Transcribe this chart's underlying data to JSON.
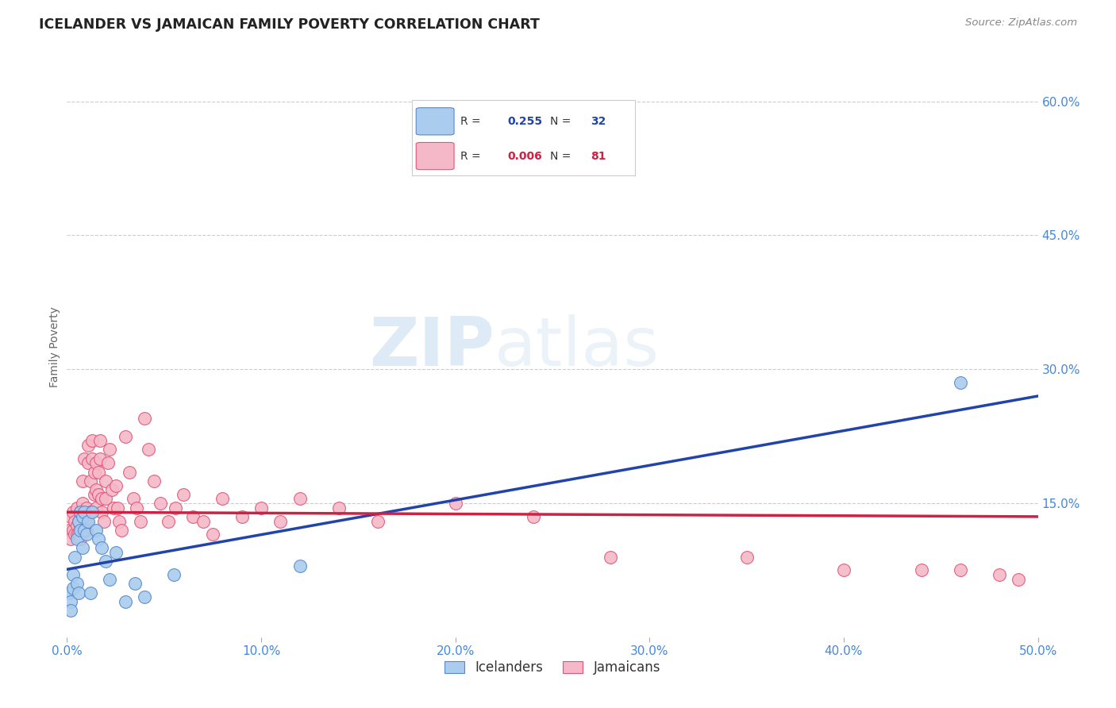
{
  "title": "ICELANDER VS JAMAICAN FAMILY POVERTY CORRELATION CHART",
  "source": "Source: ZipAtlas.com",
  "ylabel": "Family Poverty",
  "watermark_zip": "ZIP",
  "watermark_atlas": "atlas",
  "xlim": [
    0.0,
    0.5
  ],
  "ylim": [
    0.0,
    0.65
  ],
  "xticks": [
    0.0,
    0.1,
    0.2,
    0.3,
    0.4,
    0.5
  ],
  "xtick_labels": [
    "0.0%",
    "10.0%",
    "20.0%",
    "30.0%",
    "40.0%",
    "50.0%"
  ],
  "ytick_labels_right": [
    "15.0%",
    "30.0%",
    "45.0%",
    "60.0%"
  ],
  "yticks_right": [
    0.15,
    0.3,
    0.45,
    0.6
  ],
  "grid_color": "#cccccc",
  "background_color": "#ffffff",
  "icelander_color": "#aaccee",
  "jamaican_color": "#f5b8c8",
  "icelander_edge_color": "#5588cc",
  "jamaican_edge_color": "#e05575",
  "icelander_line_color": "#2244aa",
  "jamaican_line_color": "#cc2244",
  "icelander_R": "0.255",
  "icelander_N": "32",
  "jamaican_R": "0.006",
  "jamaican_N": "81",
  "legend_label1": "Icelanders",
  "legend_label2": "Jamaicans",
  "icelander_x": [
    0.001,
    0.002,
    0.002,
    0.003,
    0.003,
    0.004,
    0.005,
    0.005,
    0.006,
    0.006,
    0.007,
    0.007,
    0.008,
    0.008,
    0.009,
    0.009,
    0.01,
    0.011,
    0.012,
    0.013,
    0.015,
    0.016,
    0.018,
    0.02,
    0.022,
    0.025,
    0.03,
    0.035,
    0.04,
    0.055,
    0.12,
    0.46
  ],
  "icelander_y": [
    0.05,
    0.04,
    0.03,
    0.07,
    0.055,
    0.09,
    0.06,
    0.11,
    0.05,
    0.13,
    0.14,
    0.12,
    0.135,
    0.1,
    0.14,
    0.12,
    0.115,
    0.13,
    0.05,
    0.14,
    0.12,
    0.11,
    0.1,
    0.085,
    0.065,
    0.095,
    0.04,
    0.06,
    0.045,
    0.07,
    0.08,
    0.285
  ],
  "jamaican_x": [
    0.001,
    0.002,
    0.002,
    0.003,
    0.003,
    0.004,
    0.004,
    0.005,
    0.005,
    0.005,
    0.006,
    0.006,
    0.007,
    0.007,
    0.007,
    0.008,
    0.008,
    0.009,
    0.009,
    0.01,
    0.01,
    0.01,
    0.011,
    0.011,
    0.012,
    0.012,
    0.013,
    0.013,
    0.014,
    0.014,
    0.015,
    0.015,
    0.015,
    0.016,
    0.016,
    0.017,
    0.017,
    0.018,
    0.018,
    0.019,
    0.02,
    0.02,
    0.021,
    0.022,
    0.023,
    0.024,
    0.025,
    0.026,
    0.027,
    0.028,
    0.03,
    0.032,
    0.034,
    0.036,
    0.038,
    0.04,
    0.042,
    0.045,
    0.048,
    0.052,
    0.056,
    0.06,
    0.065,
    0.07,
    0.075,
    0.08,
    0.09,
    0.1,
    0.11,
    0.12,
    0.14,
    0.16,
    0.2,
    0.24,
    0.28,
    0.35,
    0.4,
    0.44,
    0.46,
    0.48,
    0.49
  ],
  "jamaican_y": [
    0.12,
    0.135,
    0.11,
    0.14,
    0.12,
    0.13,
    0.115,
    0.145,
    0.125,
    0.115,
    0.13,
    0.115,
    0.14,
    0.125,
    0.11,
    0.15,
    0.175,
    0.12,
    0.2,
    0.145,
    0.13,
    0.12,
    0.215,
    0.195,
    0.175,
    0.14,
    0.22,
    0.2,
    0.185,
    0.16,
    0.195,
    0.165,
    0.145,
    0.185,
    0.16,
    0.22,
    0.2,
    0.155,
    0.14,
    0.13,
    0.175,
    0.155,
    0.195,
    0.21,
    0.165,
    0.145,
    0.17,
    0.145,
    0.13,
    0.12,
    0.225,
    0.185,
    0.155,
    0.145,
    0.13,
    0.245,
    0.21,
    0.175,
    0.15,
    0.13,
    0.145,
    0.16,
    0.135,
    0.13,
    0.115,
    0.155,
    0.135,
    0.145,
    0.13,
    0.155,
    0.145,
    0.13,
    0.15,
    0.135,
    0.09,
    0.09,
    0.075,
    0.075,
    0.075,
    0.07,
    0.065
  ],
  "icelander_line_x": [
    0.0,
    0.5
  ],
  "icelander_line_y": [
    0.076,
    0.27
  ],
  "jamaican_line_x": [
    0.0,
    0.5
  ],
  "jamaican_line_y": [
    0.14,
    0.135
  ]
}
